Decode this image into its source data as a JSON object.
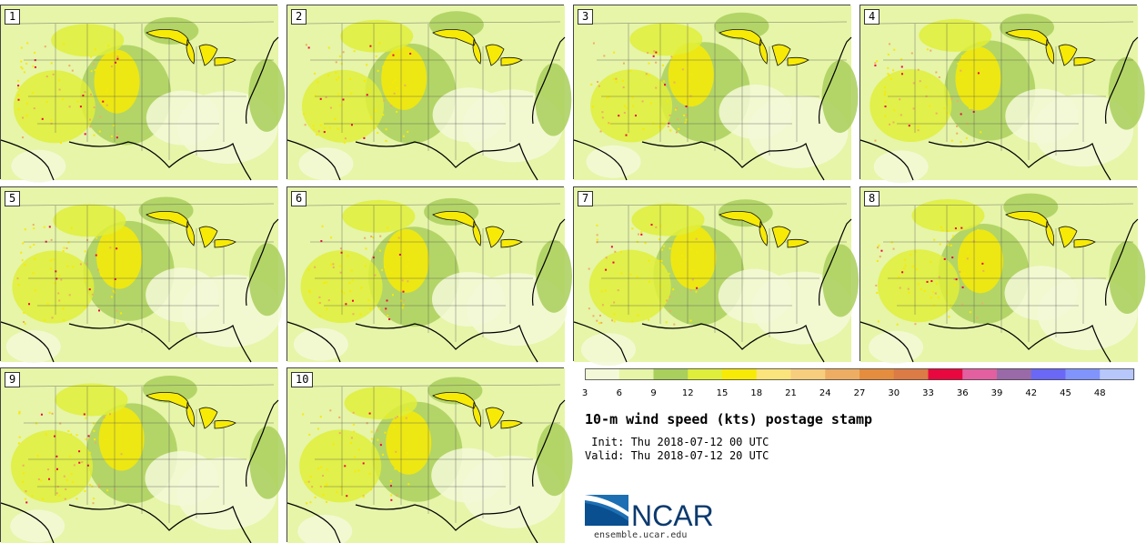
{
  "title": "10-m wind speed (kts) postage stamp",
  "init": " Init: Thu 2018-07-12 00 UTC",
  "valid": "Valid: Thu 2018-07-12 20 UTC",
  "logo_text": "NCAR",
  "url": "ensemble.ucar.edu",
  "members": [
    "1",
    "2",
    "3",
    "4",
    "5",
    "6",
    "7",
    "8",
    "9",
    "10"
  ],
  "colorbar": {
    "ticks": [
      "3",
      "6",
      "9",
      "12",
      "15",
      "18",
      "21",
      "24",
      "27",
      "30",
      "33",
      "36",
      "39",
      "42",
      "45",
      "48"
    ],
    "colors": [
      "#f3f9d8",
      "#e6f5a8",
      "#a9cf5c",
      "#dfee3a",
      "#f7ea06",
      "#fbe47b",
      "#f7cd7e",
      "#edae64",
      "#e58d3e",
      "#dc7b45",
      "#e8083f",
      "#e260a0",
      "#9a6aa8",
      "#6a68f4",
      "#8194fb",
      "#b7c7fb"
    ]
  }
}
